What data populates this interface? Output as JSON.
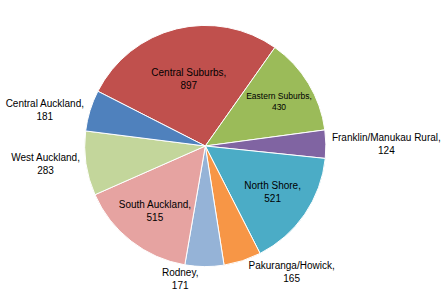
{
  "chart_data": {
    "type": "pie",
    "categories": [
      "Central Suburbs",
      "Eastern Suburbs",
      "Franklin/Manukau Rural",
      "North Shore",
      "Pakuranga/Howick",
      "Rodney",
      "South Auckland",
      "West Auckland",
      "Central Auckland"
    ],
    "values": [
      897,
      430,
      124,
      521,
      165,
      171,
      515,
      283,
      181
    ],
    "value_labels": [
      "Central Suburbs, 897",
      "Eastern Suburbs, 430",
      "Franklin/Manukau Rural, 124",
      "North Shore, 521",
      "Pakuranga/Howick, 165",
      "Rodney, 171",
      "South Auckland, 515",
      "West Auckland, 283",
      "Central Auckland, 181"
    ],
    "colors": [
      "#c0504d",
      "#9bbb59",
      "#8064a2",
      "#4bacc6",
      "#f79646",
      "#95b3d7",
      "#e6a3a1",
      "#c3d69b",
      "#4f81bd"
    ],
    "data_labels": true
  }
}
